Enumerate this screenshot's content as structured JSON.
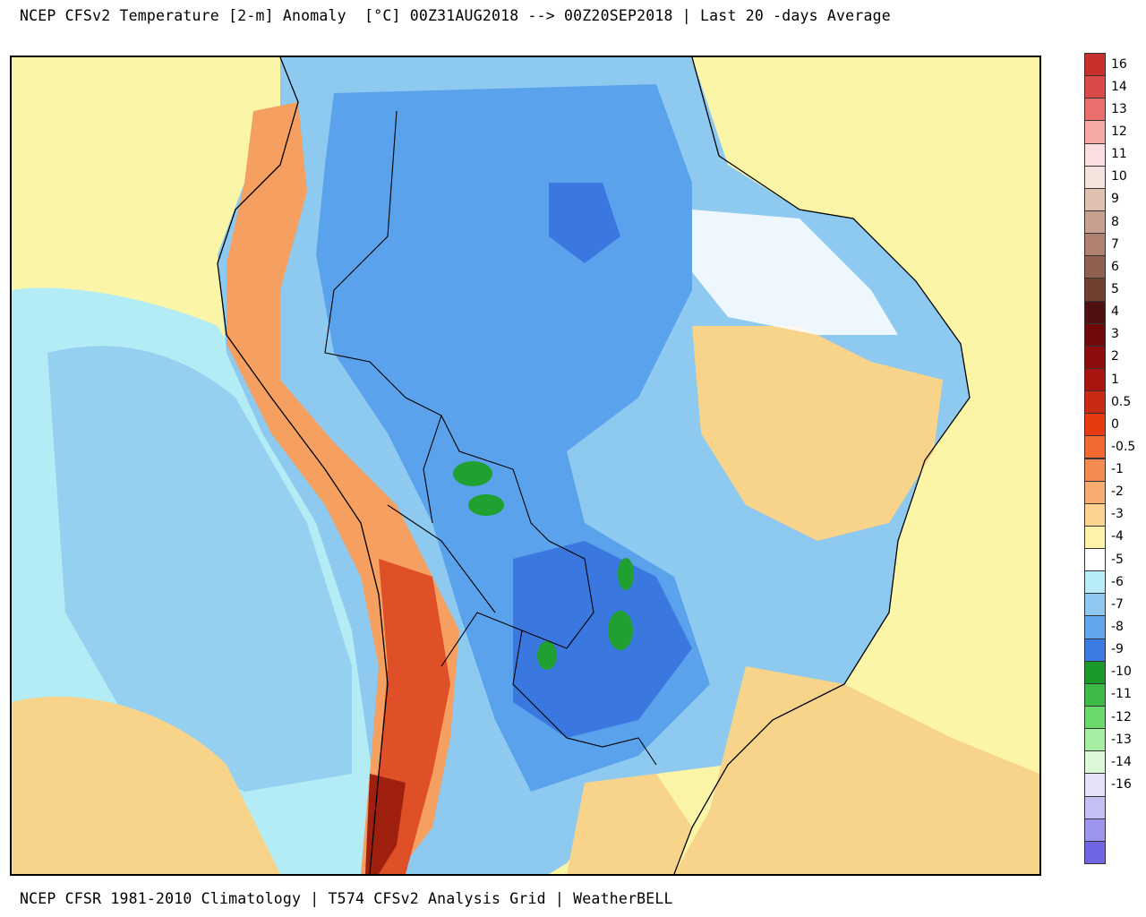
{
  "header": {
    "title": "NCEP CFSv2 Temperature [2-m] Anomaly  [°C] 00Z31AUG2018 --> 00Z20SEP2018 | Last 20 -days Average"
  },
  "footer": {
    "credit": "NCEP CFSR 1981-2010 Climatology | T574 CFSv2 Analysis Grid | WeatherBELL"
  },
  "map": {
    "variable": "Temperature [2-m] Anomaly",
    "units": "°C",
    "colors": {
      "ocean_warm": "#fbf5a8",
      "cool_light": "#b3ecf5",
      "cool_mid": "#8ec9f0",
      "cool": "#5aa2ec",
      "cool_deep": "#3a78e0",
      "cold_green": "#1fa030",
      "warm_tan": "#f8d48a",
      "warm_orange": "#f5a060",
      "hot_red": "#e05028",
      "hot_dark": "#a02010",
      "border": "#000000"
    }
  },
  "legend": {
    "entries": [
      {
        "label": "16",
        "color": "#c8302e"
      },
      {
        "label": "14",
        "color": "#da4a48"
      },
      {
        "label": "13",
        "color": "#ea6e6c"
      },
      {
        "label": "12",
        "color": "#f5a8a6"
      },
      {
        "label": "11",
        "color": "#fcdede"
      },
      {
        "label": "10",
        "color": "#f3e3dc"
      },
      {
        "label": "9",
        "color": "#e0c0b0"
      },
      {
        "label": "8",
        "color": "#c8a090"
      },
      {
        "label": "7",
        "color": "#b08070"
      },
      {
        "label": "6",
        "color": "#906050"
      },
      {
        "label": "5",
        "color": "#704030"
      },
      {
        "label": "4",
        "color": "#4e1010"
      },
      {
        "label": "3",
        "color": "#700a0a"
      },
      {
        "label": "2",
        "color": "#8c0c0c"
      },
      {
        "label": "1",
        "color": "#a81410"
      },
      {
        "label": "0.5",
        "color": "#c82a14"
      },
      {
        "label": "0",
        "color": "#e83a10"
      },
      {
        "label": "-0.5",
        "color": "#f06a30"
      },
      {
        "label": "-1",
        "color": "#f48a50"
      },
      {
        "label": "-2",
        "color": "#f8ac70"
      },
      {
        "label": "-3",
        "color": "#fbd290"
      },
      {
        "label": "-4",
        "color": "#fdf2a8"
      },
      {
        "label": "-5",
        "color": "#ffffff"
      },
      {
        "label": "-6",
        "color": "#b8ecf6"
      },
      {
        "label": "-7",
        "color": "#8ec8f0"
      },
      {
        "label": "-8",
        "color": "#62a6ec"
      },
      {
        "label": "-9",
        "color": "#3a7ce2"
      },
      {
        "label": "-10",
        "color": "#1a9a2a"
      },
      {
        "label": "-11",
        "color": "#3cbc46"
      },
      {
        "label": "-12",
        "color": "#6ad86a"
      },
      {
        "label": "-13",
        "color": "#a6eea2"
      },
      {
        "label": "-14",
        "color": "#dcf8d8"
      },
      {
        "label": "-16",
        "color": "#e4e2f8"
      },
      {
        "label": "",
        "color": "#c4c0f4"
      },
      {
        "label": "",
        "color": "#9c96ee"
      },
      {
        "label": "",
        "color": "#6e66e2"
      }
    ]
  }
}
